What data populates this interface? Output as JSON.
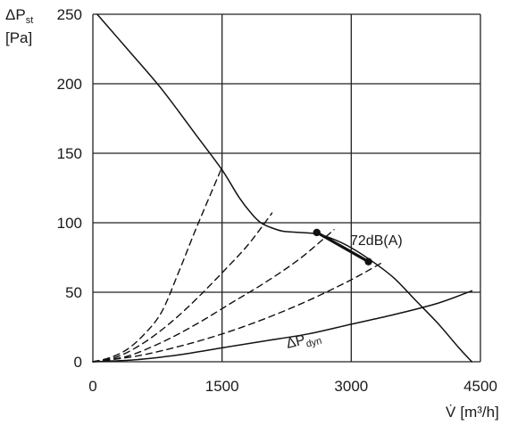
{
  "chart_data": {
    "type": "line",
    "title": "",
    "xlabel": {
      "symbol": "V̇",
      "unit": "[m³/h]"
    },
    "ylabel": {
      "symbol": "ΔP",
      "subscript": "st",
      "unit": "[Pa]"
    },
    "xlim": [
      0,
      4500
    ],
    "ylim": [
      0,
      250
    ],
    "xticks": [
      0,
      1500,
      3000,
      4500
    ],
    "yticks": [
      0,
      50,
      100,
      150,
      200,
      250
    ],
    "grid": true,
    "series": [
      {
        "style": "solid",
        "x": [
          50,
          400,
          800,
          1200,
          1500,
          1700,
          1850,
          1950,
          2050,
          2200,
          2400,
          2600,
          2800,
          3000,
          3250,
          3500,
          3750,
          4000,
          4250,
          4400
        ],
        "y": [
          250,
          225,
          196,
          163,
          138,
          118,
          106,
          100,
          97,
          94,
          93,
          92,
          88,
          82,
          72,
          60,
          44,
          28,
          10,
          0
        ]
      },
      {
        "name": {
          "symbol": "ΔP",
          "subscript": "dyn"
        },
        "style": "solid",
        "x": [
          0,
          500,
          1000,
          1500,
          2000,
          2500,
          3000,
          3500,
          4000,
          4400
        ],
        "y": [
          0,
          1.5,
          5,
          10,
          15,
          20,
          27,
          34,
          42,
          51
        ]
      },
      {
        "label": "72dB(A)",
        "style": "bold",
        "x": [
          2600,
          3200
        ],
        "y": [
          93,
          72
        ]
      },
      {
        "style": "dashed",
        "x": [
          0,
          200,
          400,
          600,
          800,
          1000,
          1200,
          1500
        ],
        "y": [
          0,
          3,
          9,
          20,
          36,
          65,
          96,
          140
        ]
      },
      {
        "style": "dashed",
        "x": [
          0,
          300,
          600,
          900,
          1200,
          1500,
          1800,
          2080
        ],
        "y": [
          0,
          4,
          14,
          28,
          45,
          64,
          84,
          107
        ]
      },
      {
        "style": "dashed",
        "x": [
          0,
          400,
          800,
          1200,
          1600,
          2000,
          2400,
          2800
        ],
        "y": [
          0,
          4,
          14,
          27,
          42,
          57,
          74,
          95
        ]
      },
      {
        "style": "dashed",
        "x": [
          0,
          500,
          1000,
          1500,
          2000,
          2500,
          3000,
          3350
        ],
        "y": [
          0,
          4,
          11,
          20,
          31,
          44,
          59,
          71
        ]
      }
    ],
    "points": [
      {
        "x": 2600,
        "y": 93
      },
      {
        "x": 3200,
        "y": 72
      }
    ],
    "annotations": [
      {
        "text": "72dB(A)",
        "x": 3000,
        "y": 88
      },
      {
        "text": {
          "symbol": "ΔP",
          "subscript": "dyn"
        },
        "x": 2300,
        "y": 12
      }
    ]
  }
}
